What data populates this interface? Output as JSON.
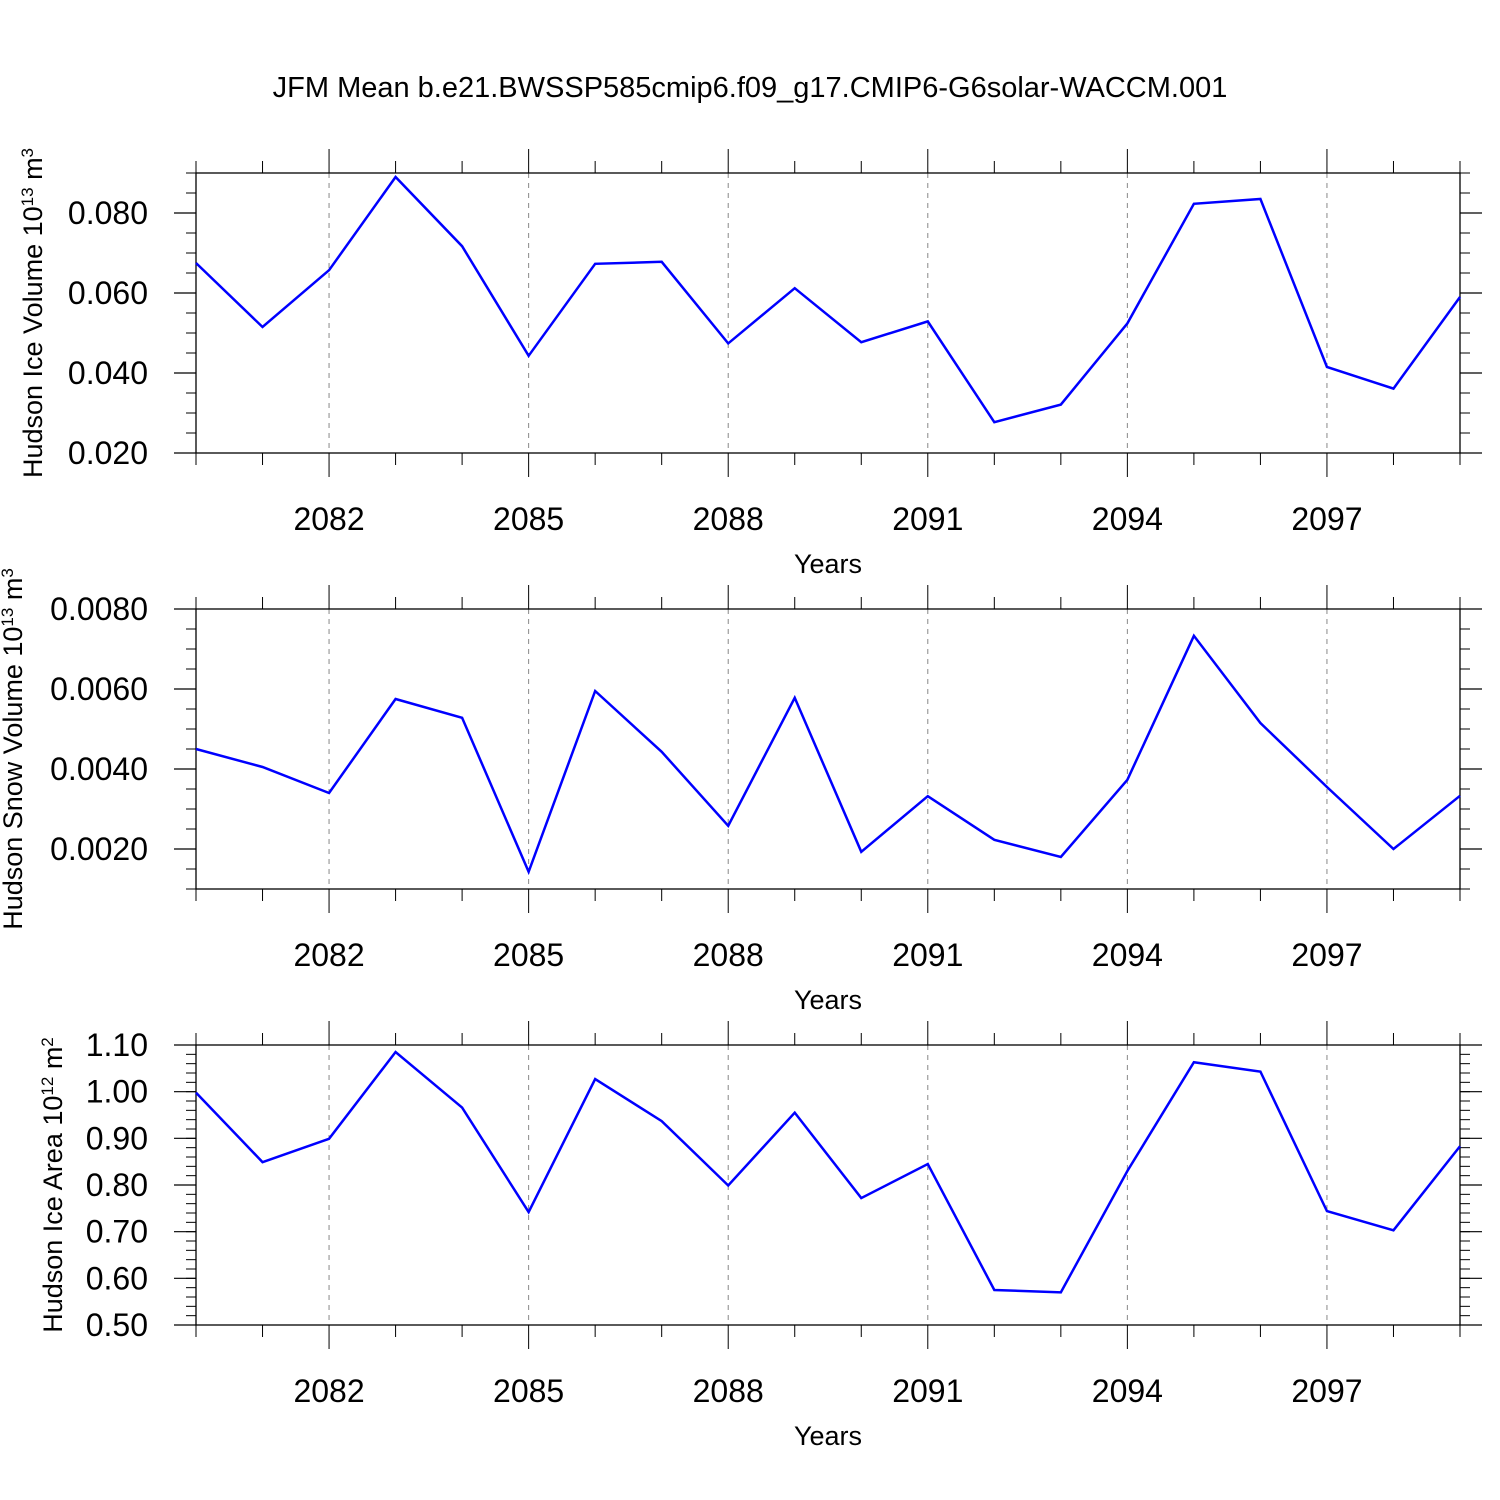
{
  "figure": {
    "title": "JFM Mean b.e21.BWSSP585cmip6.f09_g17.CMIP6-G6solar-WACCM.001"
  },
  "colors": {
    "series": "#0000ff",
    "axis": "#000000",
    "grid": "#888888"
  },
  "chart_data": [
    {
      "type": "line",
      "title": "JFM Mean b.e21.BWSSP585cmip6.f09_g17.CMIP6-G6solar-WACCM.001",
      "xlabel": "Years",
      "ylabel": "Hudson Ice Volume",
      "ylabel_unit": {
        "base": "10",
        "exp": "13",
        "unit": "m",
        "unit_exp": "3"
      },
      "xlim": [
        2080,
        2099
      ],
      "ylim": [
        0.02,
        0.09
      ],
      "x_ticks": [
        2082,
        2085,
        2088,
        2091,
        2094,
        2097
      ],
      "x_tick_labels": [
        "2082",
        "2085",
        "2088",
        "2091",
        "2094",
        "2097"
      ],
      "y_ticks": [
        0.02,
        0.04,
        0.06,
        0.08
      ],
      "y_tick_labels": [
        "0.020",
        "0.040",
        "0.060",
        "0.080"
      ],
      "y_minor_step": 0.005,
      "grid": "vertical dashed at x ticks",
      "x": [
        2080,
        2081,
        2082,
        2083,
        2084,
        2085,
        2086,
        2087,
        2088,
        2089,
        2090,
        2091,
        2092,
        2093,
        2094,
        2095,
        2096,
        2097,
        2098,
        2099
      ],
      "series": [
        {
          "values": [
            0.0675,
            0.0515,
            0.0657,
            0.089,
            0.0717,
            0.0443,
            0.0673,
            0.0678,
            0.0474,
            0.0612,
            0.0477,
            0.0529,
            0.0277,
            0.0321,
            0.0524,
            0.0823,
            0.0835,
            0.0415,
            0.0361,
            0.059
          ]
        }
      ]
    },
    {
      "type": "line",
      "xlabel": "Years",
      "ylabel": "Hudson Snow Volume",
      "ylabel_unit": {
        "base": "10",
        "exp": "13",
        "unit": "m",
        "unit_exp": "3"
      },
      "xlim": [
        2080,
        2099
      ],
      "ylim": [
        0.001,
        0.008
      ],
      "x_ticks": [
        2082,
        2085,
        2088,
        2091,
        2094,
        2097
      ],
      "x_tick_labels": [
        "2082",
        "2085",
        "2088",
        "2091",
        "2094",
        "2097"
      ],
      "y_ticks": [
        0.002,
        0.004,
        0.006,
        0.008
      ],
      "y_tick_labels": [
        "0.0020",
        "0.0040",
        "0.0060",
        "0.0080"
      ],
      "y_minor_step": 0.0005,
      "grid": "vertical dashed at x ticks",
      "x": [
        2080,
        2081,
        2082,
        2083,
        2084,
        2085,
        2086,
        2087,
        2088,
        2089,
        2090,
        2091,
        2092,
        2093,
        2094,
        2095,
        2096,
        2097,
        2098,
        2099
      ],
      "series": [
        {
          "values": [
            0.0045,
            0.00405,
            0.0034,
            0.00575,
            0.00528,
            0.00143,
            0.00595,
            0.00443,
            0.00258,
            0.00578,
            0.00193,
            0.00332,
            0.00223,
            0.0018,
            0.00373,
            0.00733,
            0.00515,
            0.00355,
            0.002,
            0.00333
          ]
        }
      ]
    },
    {
      "type": "line",
      "xlabel": "Years",
      "ylabel": "Hudson Ice Area",
      "ylabel_unit": {
        "base": "10",
        "exp": "12",
        "unit": "m",
        "unit_exp": "2"
      },
      "xlim": [
        2080,
        2099
      ],
      "ylim": [
        0.5,
        1.1
      ],
      "x_ticks": [
        2082,
        2085,
        2088,
        2091,
        2094,
        2097
      ],
      "x_tick_labels": [
        "2082",
        "2085",
        "2088",
        "2091",
        "2094",
        "2097"
      ],
      "y_ticks": [
        0.5,
        0.6,
        0.7,
        0.8,
        0.9,
        1.0,
        1.1
      ],
      "y_tick_labels": [
        "0.50",
        "0.60",
        "0.70",
        "0.80",
        "0.90",
        "1.00",
        "1.10"
      ],
      "y_minor_step": 0.02,
      "grid": "vertical dashed at x ticks",
      "x": [
        2080,
        2081,
        2082,
        2083,
        2084,
        2085,
        2086,
        2087,
        2088,
        2089,
        2090,
        2091,
        2092,
        2093,
        2094,
        2095,
        2096,
        2097,
        2098,
        2099
      ],
      "series": [
        {
          "values": [
            0.998,
            0.849,
            0.899,
            1.085,
            0.966,
            0.742,
            1.027,
            0.937,
            0.799,
            0.955,
            0.772,
            0.845,
            0.575,
            0.57,
            0.83,
            1.063,
            1.043,
            0.744,
            0.703,
            0.883
          ]
        }
      ]
    }
  ]
}
